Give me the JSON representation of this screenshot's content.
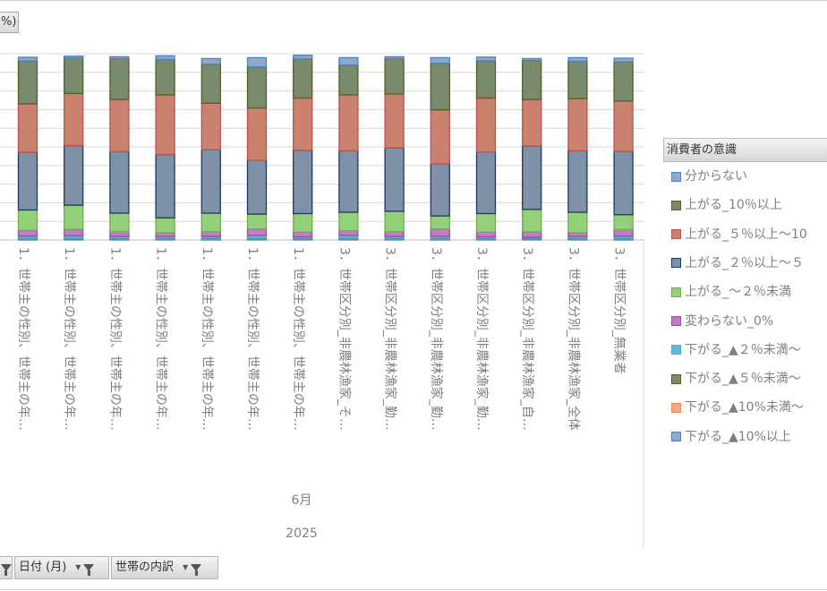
{
  "y_axis_tab": "%)",
  "legend": {
    "title": "消費者の意識",
    "items": [
      {
        "label": "分からない",
        "color": "#4f81bd"
      },
      {
        "label": "上がる_10％以上",
        "color": "#4f6228"
      },
      {
        "label": "上がる_５％以上～10",
        "color": "#c0504d"
      },
      {
        "label": "上がる_２％以上～５",
        "color": "#1f3864"
      },
      {
        "label": "上がる_～２％未満",
        "color": "#70ad47"
      },
      {
        "label": "変わらない_0%",
        "color": "#9b4ba3"
      },
      {
        "label": "下がる_▲２％未満～",
        "color": "#4bacc6"
      },
      {
        "label": "下がる_▲５％未満～",
        "color": "#4f6228"
      },
      {
        "label": "下がる_▲10%未満～",
        "color": "#e88b5a"
      },
      {
        "label": "下がる_▲10%以上",
        "color": "#4f81bd"
      }
    ]
  },
  "filters": [
    {
      "label": ""
    },
    {
      "label": "日付 (月)"
    },
    {
      "label": "世帯の内訳"
    }
  ],
  "chart_data": {
    "type": "bar",
    "stacked": true,
    "ylim": [
      0,
      100
    ],
    "grid": true,
    "legend_position": "right",
    "x_groups": [
      {
        "label": "6月"
      },
      {
        "label": "2025"
      }
    ],
    "categories": [
      "1．世帯主の性別、世帯主の年…",
      "1．世帯主の性別、世帯主の年…",
      "1．世帯主の性別、世帯主の年…",
      "1．世帯主の性別、世帯主の年…",
      "1．世帯主の性別、世帯主の年…",
      "1．世帯主の性別、世帯主の年…",
      "1．世帯主の性別、世帯主の年…",
      "3．世帯区分別_非農林漁家_そ…",
      "3．世帯区分別_非農林漁家_勤…",
      "3．世帯区分別_非農林漁家_勤…",
      "3．世帯区分別_非農林漁家_勤…",
      "3．世帯区分別_非農林漁家_自…",
      "3．世帯区分別_非農林漁家_全体",
      "3．世帯区分別_無業者"
    ],
    "series": [
      {
        "name": "下がる_▲10%以上",
        "color": "#4f81bd",
        "values": [
          0.3,
          0.3,
          0.3,
          0.3,
          0.3,
          0.3,
          0.3,
          0.3,
          0.3,
          0.3,
          0.3,
          0.3,
          0.3,
          0.3
        ]
      },
      {
        "name": "下がる_▲10%未満～",
        "color": "#e88b5a",
        "values": [
          0.3,
          0.3,
          0.3,
          0.3,
          0.3,
          0.3,
          0.3,
          0.3,
          0.3,
          0.3,
          0.3,
          0.3,
          0.3,
          0.3
        ]
      },
      {
        "name": "下がる_▲５％未満～",
        "color": "#4f6228",
        "values": [
          0.3,
          0.3,
          0.3,
          0.3,
          0.3,
          0.3,
          0.3,
          0.3,
          0.3,
          0.3,
          0.3,
          0.3,
          0.3,
          0.3
        ]
      },
      {
        "name": "下がる_▲２％未満～",
        "color": "#4bacc6",
        "values": [
          1.2,
          1.3,
          1.0,
          1.0,
          1.0,
          1.5,
          0.8,
          1.5,
          1.0,
          1.0,
          0.8,
          0.5,
          1.0,
          1.2
        ]
      },
      {
        "name": "変わらない_0%",
        "color": "#9b4ba3",
        "values": [
          3.0,
          3.5,
          2.5,
          2.0,
          2.5,
          3.5,
          2.5,
          2.5,
          2.5,
          4.0,
          2.5,
          3.0,
          2.0,
          3.5
        ]
      },
      {
        "name": "上がる_～２％未満",
        "color": "#70ad47",
        "values": [
          11,
          13,
          10,
          8,
          10,
          8,
          10,
          10,
          11,
          7,
          10,
          12,
          11,
          8
        ]
      },
      {
        "name": "上がる_２％以上～５",
        "color": "#1f3864",
        "values": [
          31,
          32,
          33,
          34,
          34,
          29,
          34,
          33,
          34,
          28,
          33,
          34,
          33,
          34
        ]
      },
      {
        "name": "上がる_５％以上～10",
        "color": "#c0504d",
        "values": [
          26,
          28,
          28,
          32,
          25,
          28,
          28,
          30,
          29,
          29,
          29,
          25,
          28,
          27
        ]
      },
      {
        "name": "上がる_10％以上",
        "color": "#4f6228",
        "values": [
          23,
          19,
          22,
          19,
          21,
          22,
          21,
          16,
          19,
          25,
          20,
          21,
          20,
          21
        ]
      },
      {
        "name": "分からない",
        "color": "#4f81bd",
        "values": [
          2,
          1,
          1,
          2,
          3,
          5,
          2,
          4,
          1,
          3,
          2,
          1,
          2,
          2
        ]
      }
    ]
  }
}
